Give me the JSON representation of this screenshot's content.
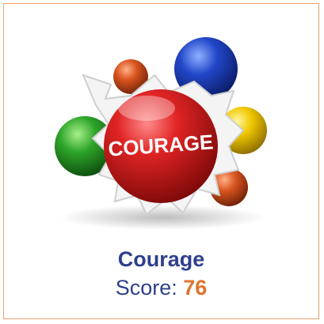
{
  "card": {
    "image_label": "COURAGE",
    "title": "Courage",
    "score_label": "Score:",
    "score": 76
  }
}
